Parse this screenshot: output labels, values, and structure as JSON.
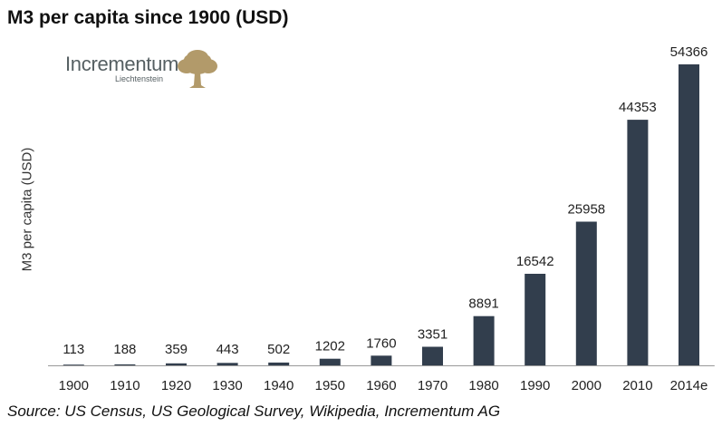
{
  "chart_data": {
    "type": "bar",
    "title": "M3 per capita since 1900 (USD)",
    "ylabel": "M3 per capita (USD)",
    "xlabel": "",
    "categories": [
      "1900",
      "1910",
      "1920",
      "1930",
      "1940",
      "1950",
      "1960",
      "1970",
      "1980",
      "1990",
      "2000",
      "2010",
      "2014e"
    ],
    "values": [
      113,
      188,
      359,
      443,
      502,
      1202,
      1760,
      3351,
      8891,
      16542,
      25958,
      44353,
      54366
    ],
    "data_labels": [
      "113",
      "188",
      "359",
      "443",
      "502",
      "1202",
      "1760",
      "3351",
      "8891",
      "16542",
      "25958",
      "44353",
      "54366"
    ],
    "ylim": [
      0,
      54366
    ],
    "grid": false,
    "legend": "none",
    "bar_color": "#323e4d"
  },
  "logo": {
    "name": "Incrementum",
    "sub": "Liechtenstein",
    "tree_color": "#b29a6a"
  },
  "source": "Source: US Census, US Geological Survey, Wikipedia, Incrementum AG"
}
